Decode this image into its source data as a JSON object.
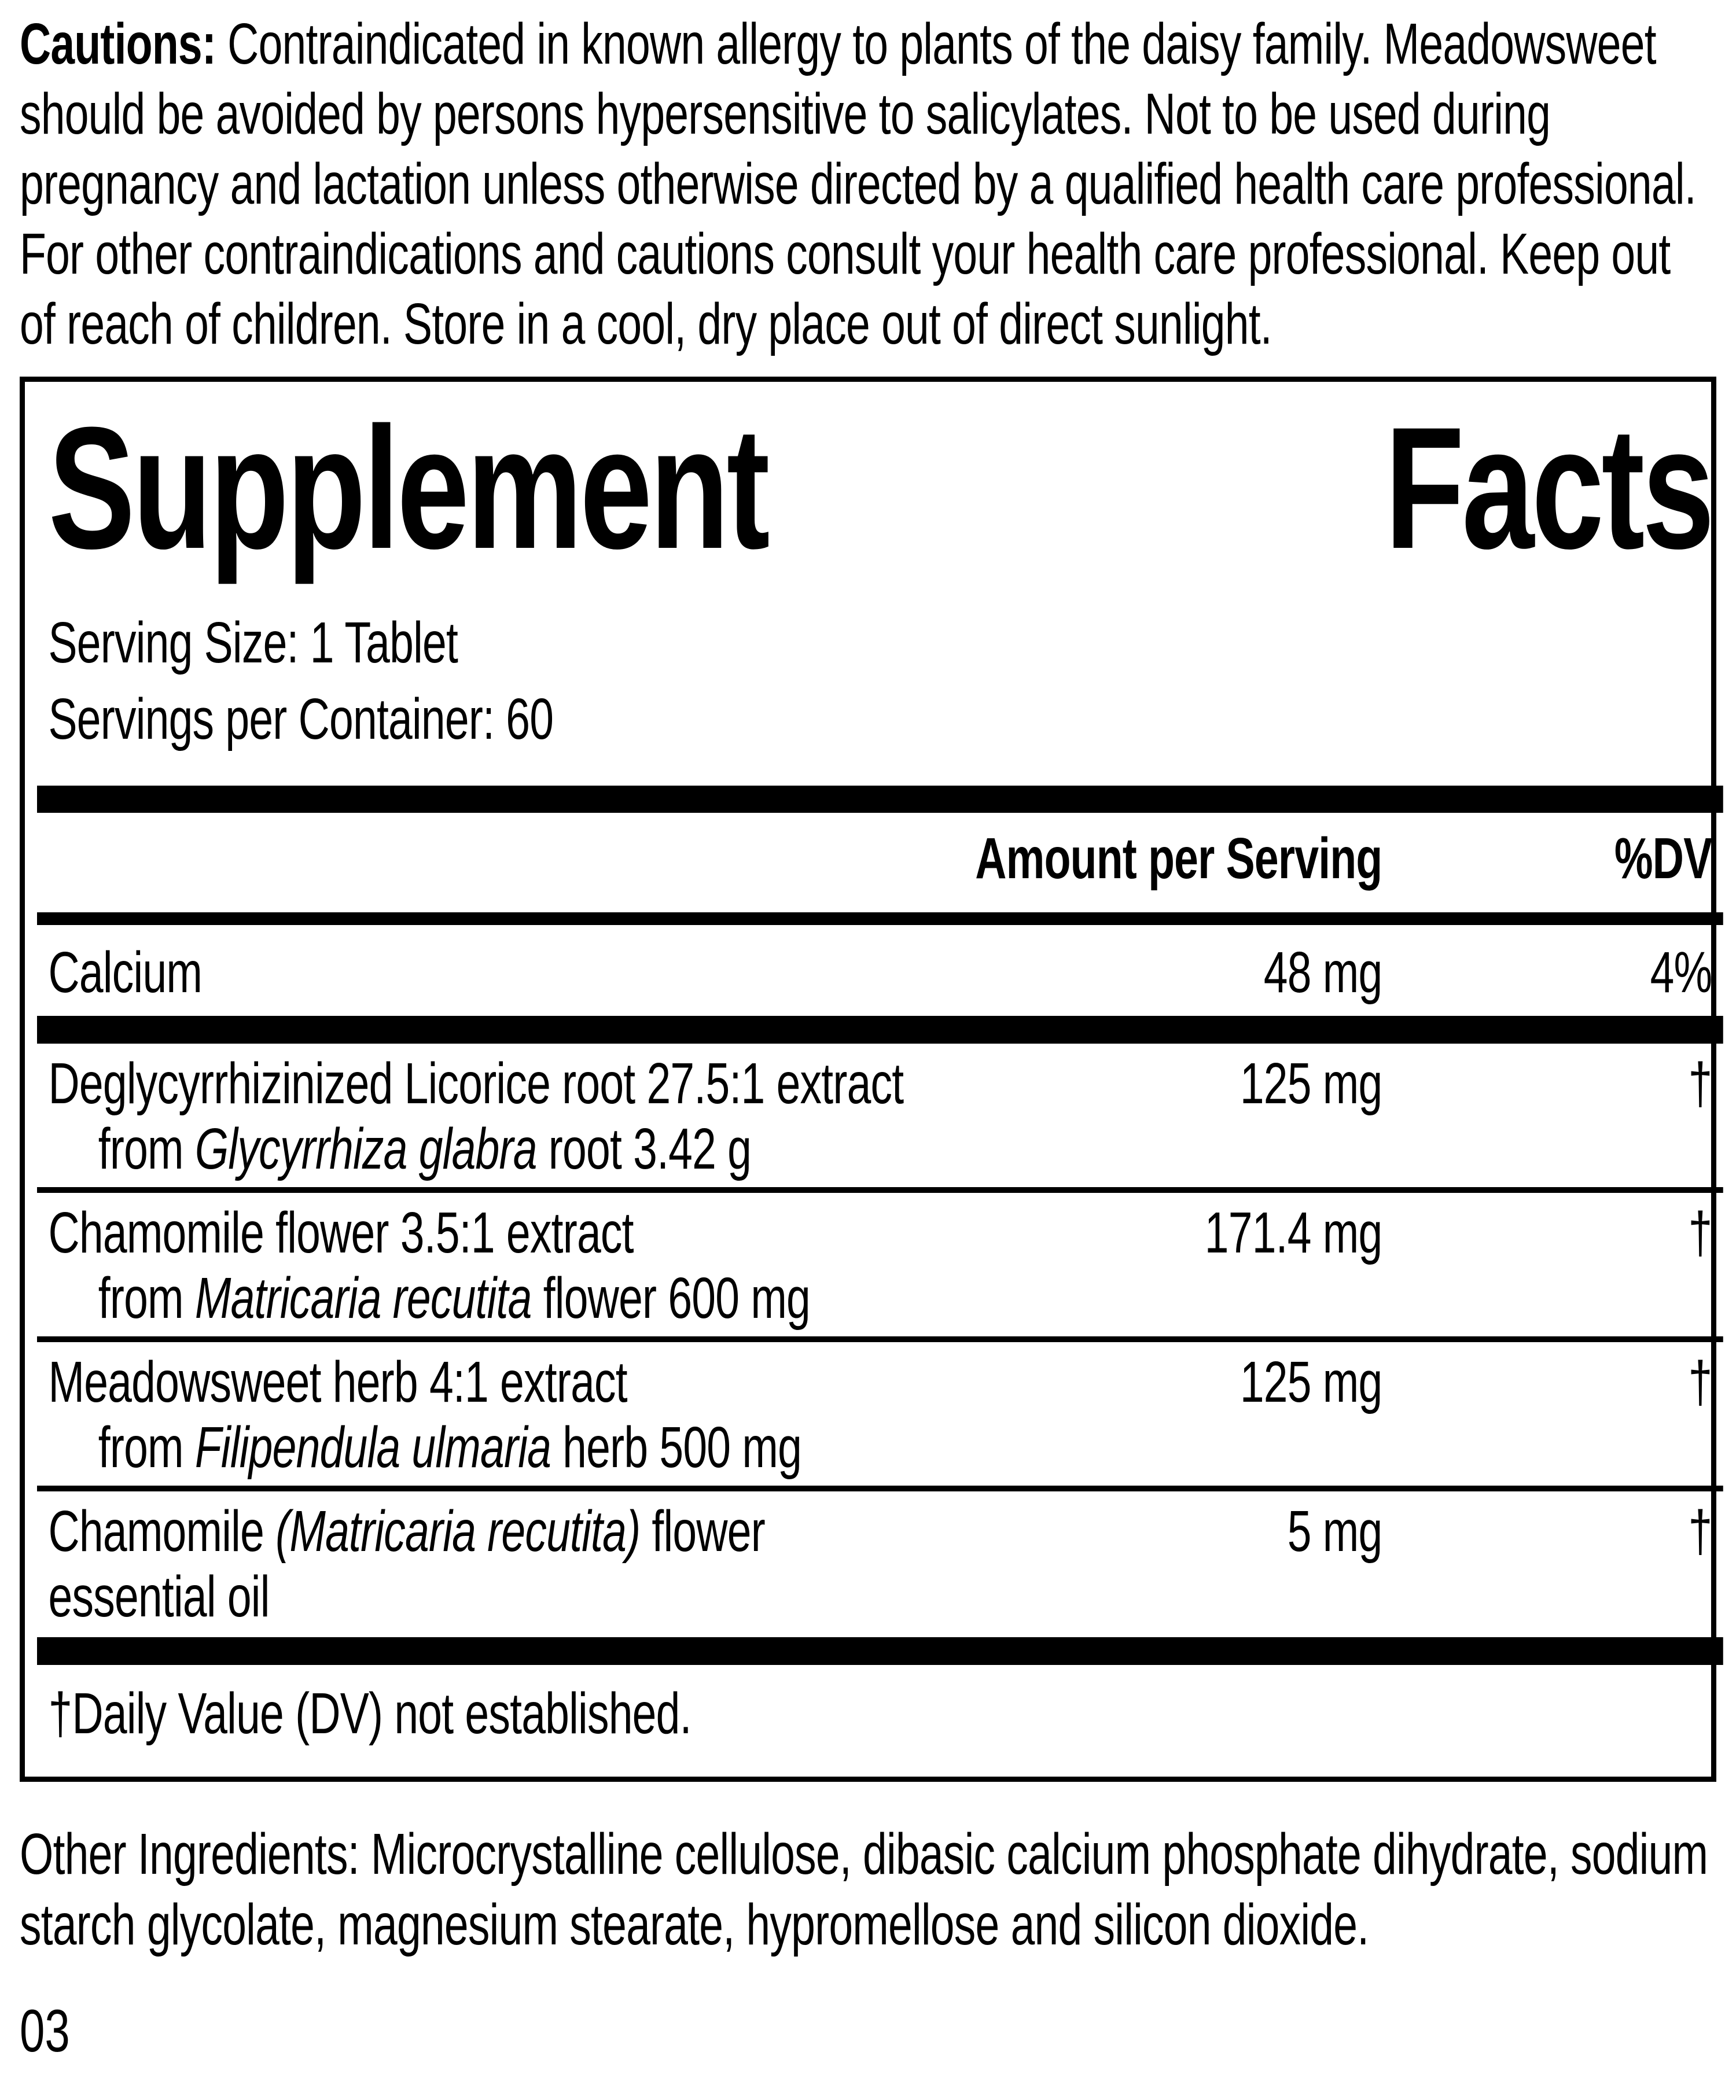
{
  "cautions": {
    "label": "Cautions:",
    "text": " Contraindicated in known allergy to plants of the daisy family. Meadowsweet should be avoided by persons hypersensitive to salicylates. Not to be used during pregnancy and lactation unless otherwise directed by a qualified health care professional. For other contraindications and cautions consult your health care professional. Keep out of reach of children. Store in a cool, dry place out of direct sunlight."
  },
  "facts": {
    "title": "Supplement Facts",
    "title_words": [
      "Supplement",
      "Facts"
    ],
    "serving_size": "Serving Size: 1 Tablet",
    "servings_per_container": "Servings per Container: 60",
    "columns": {
      "amount": "Amount per Serving",
      "dv": "%DV"
    },
    "rows": [
      {
        "name": "Calcium",
        "amount": "48 mg",
        "dv": "4%"
      },
      {
        "name": "Deglycyrrhizinized Licorice root 27.5:1 extract",
        "amount": "125 mg",
        "dv": "†",
        "sub": {
          "pre": "from ",
          "italic": "Glycyrrhiza glabra",
          "post": " root 3.42 g"
        }
      },
      {
        "name": "Chamomile flower 3.5:1 extract",
        "amount": "171.4 mg",
        "dv": "†",
        "sub": {
          "pre": "from ",
          "italic": "Matricaria recutita",
          "post": " flower 600 mg"
        }
      },
      {
        "name": "Meadowsweet herb 4:1 extract",
        "amount": "125 mg",
        "dv": "†",
        "sub": {
          "pre": "from ",
          "italic": "Filipendula ulmaria",
          "post": " herb 500 mg"
        }
      },
      {
        "name_pre": "Chamomile ",
        "name_italic": "(Matricaria recutita)",
        "name_post": " flower",
        "name_line2": "essential oil",
        "amount": "5 mg",
        "dv": "†"
      }
    ],
    "footnote": "†Daily Value (DV) not established."
  },
  "other_ingredients": "Other Ingredients: Microcrystalline cellulose, dibasic calcium phosphate dihydrate, sodium starch glycolate, magnesium stearate, hypromellose and silicon dioxide.",
  "footer_code": "03"
}
